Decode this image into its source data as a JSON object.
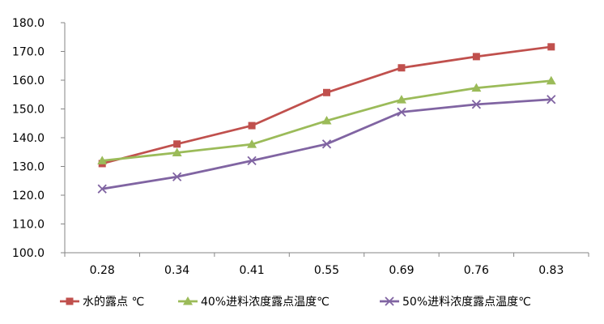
{
  "chart_data": {
    "type": "line",
    "title": "",
    "xlabel": "",
    "ylabel": "",
    "categories": [
      "0.28",
      "0.34",
      "0.41",
      "0.55",
      "0.69",
      "0.76",
      "0.83"
    ],
    "ylim": [
      100,
      180
    ],
    "yticks": [
      "100.0",
      "110.0",
      "120.0",
      "130.0",
      "140.0",
      "150.0",
      "160.0",
      "170.0",
      "180.0"
    ],
    "grid": false,
    "legend_position": "bottom",
    "series": [
      {
        "name": "水的露点 ℃",
        "color": "#c0504d",
        "marker": "square",
        "values": [
          131.0,
          137.8,
          144.2,
          155.7,
          164.3,
          168.2,
          171.6
        ]
      },
      {
        "name": "40%进料浓度露点温度℃",
        "color": "#9bbb59",
        "marker": "triangle",
        "values": [
          132.0,
          134.8,
          137.7,
          145.9,
          153.2,
          157.3,
          159.8
        ]
      },
      {
        "name": "50%进料浓度露点温度℃",
        "color": "#8064a2",
        "marker": "x",
        "values": [
          122.2,
          126.4,
          132.0,
          137.8,
          148.9,
          151.6,
          153.3
        ]
      }
    ]
  }
}
